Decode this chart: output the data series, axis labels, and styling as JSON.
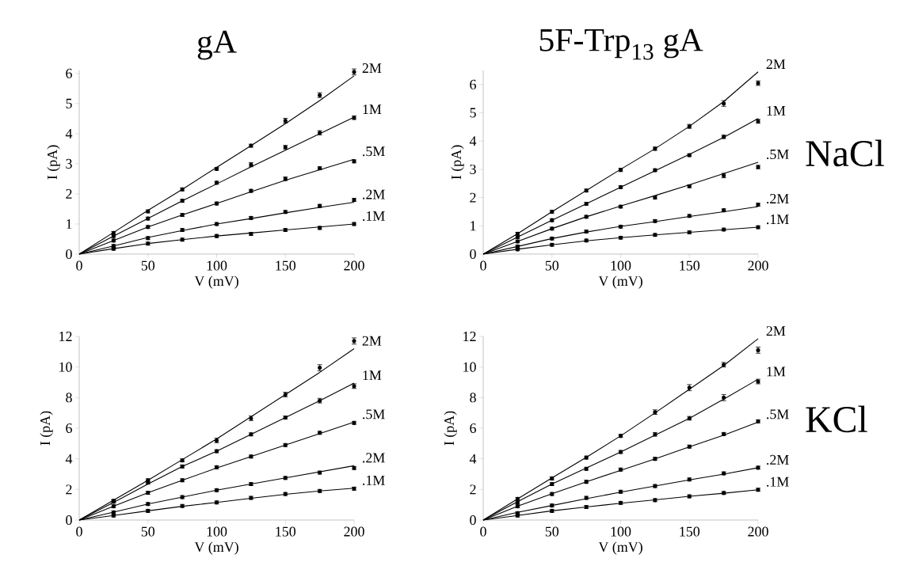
{
  "chart_data": [
    {
      "type": "line",
      "title": "gA",
      "xlabel": "V (mV)",
      "ylabel": "I (pA)",
      "marker": "none",
      "line_style": "solid",
      "x": [
        0,
        25,
        50,
        75,
        100,
        125,
        150,
        175,
        200
      ],
      "xlim": [
        0,
        200
      ],
      "xticks": [
        0,
        50,
        100,
        150,
        200
      ],
      "ylim": [
        0,
        6.1
      ],
      "yticks": [
        0,
        1,
        2,
        3,
        4,
        5,
        6
      ],
      "series": [
        {
          "name": "2M",
          "color": "#000000",
          "values": [
            0,
            0.72,
            1.45,
            2.15,
            2.88,
            3.6,
            4.33,
            5.1,
            5.92
          ]
        },
        {
          "name": "1M",
          "color": "#000000",
          "values": [
            0,
            0.6,
            1.18,
            1.77,
            2.33,
            2.9,
            3.45,
            4.0,
            4.55
          ]
        },
        {
          "name": ".5M",
          "color": "#000000",
          "values": [
            0,
            0.45,
            0.9,
            1.3,
            1.68,
            2.07,
            2.45,
            2.8,
            3.15
          ]
        },
        {
          "name": ".2M",
          "color": "#000000",
          "values": [
            0,
            0.27,
            0.55,
            0.78,
            1.0,
            1.18,
            1.37,
            1.55,
            1.72
          ]
        },
        {
          "name": ".1M",
          "color": "#000000",
          "values": [
            0,
            0.18,
            0.35,
            0.48,
            0.6,
            0.7,
            0.8,
            0.9,
            1.0
          ]
        },
        {
          "type": "scatter",
          "color": "#000000",
          "x": [
            25,
            50,
            75,
            100,
            125,
            150,
            175,
            200
          ],
          "values": [
            0.7,
            1.42,
            2.15,
            2.83,
            3.6,
            4.43,
            5.28,
            6.05
          ],
          "errors": [
            0.05,
            0.05,
            0.05,
            0.05,
            0.05,
            0.08,
            0.08,
            0.1
          ]
        },
        {
          "type": "scatter",
          "color": "#000000",
          "x": [
            25,
            50,
            75,
            100,
            125,
            150,
            175,
            200
          ],
          "values": [
            0.6,
            1.18,
            1.77,
            2.37,
            2.97,
            3.55,
            4.03,
            4.53
          ],
          "errors": [
            0.05,
            0.05,
            0.05,
            0.05,
            0.07,
            0.06,
            0.07,
            0.06
          ]
        },
        {
          "type": "scatter",
          "color": "#000000",
          "x": [
            25,
            50,
            75,
            100,
            125,
            150,
            175,
            200
          ],
          "values": [
            0.45,
            0.9,
            1.3,
            1.68,
            2.1,
            2.5,
            2.85,
            3.08
          ],
          "errors": [
            0.05,
            0.05,
            0.05,
            0.05,
            0.05,
            0.06,
            0.05,
            0.05
          ]
        },
        {
          "type": "scatter",
          "color": "#000000",
          "x": [
            25,
            50,
            75,
            100,
            125,
            150,
            175,
            200
          ],
          "values": [
            0.27,
            0.53,
            0.8,
            1.0,
            1.2,
            1.4,
            1.6,
            1.8
          ],
          "errors": [
            0.05,
            0.05,
            0.05,
            0.05,
            0.05,
            0.05,
            0.05,
            0.05
          ]
        },
        {
          "type": "scatter",
          "color": "#000000",
          "x": [
            25,
            50,
            75,
            100,
            125,
            150,
            175,
            200
          ],
          "values": [
            0.18,
            0.35,
            0.48,
            0.6,
            0.67,
            0.8,
            0.87,
            1.0
          ],
          "errors": [
            0.05,
            0.05,
            0.05,
            0.05,
            0.05,
            0.05,
            0.05,
            0.05
          ]
        }
      ]
    },
    {
      "type": "line",
      "title": "5F-Trp$_{13}$ gA",
      "xlabel": "V (mV)",
      "ylabel": "I (pA)",
      "marker": "none",
      "line_style": "solid",
      "x": [
        0,
        25,
        50,
        75,
        100,
        125,
        150,
        175,
        200
      ],
      "xlim": [
        0,
        200
      ],
      "xticks": [
        0,
        50,
        100,
        150,
        200
      ],
      "ylim": [
        0,
        6.5
      ],
      "yticks": [
        0,
        1,
        2,
        3,
        4,
        5,
        6
      ],
      "annotations": [
        "NaCl"
      ],
      "series": [
        {
          "name": "2M",
          "color": "#000000",
          "values": [
            0,
            0.72,
            1.5,
            2.25,
            3.0,
            3.73,
            4.52,
            5.4,
            6.45
          ]
        },
        {
          "name": "1M",
          "color": "#000000",
          "values": [
            0,
            0.6,
            1.2,
            1.78,
            2.37,
            2.95,
            3.53,
            4.13,
            4.8
          ]
        },
        {
          "name": ".5M",
          "color": "#000000",
          "values": [
            0,
            0.45,
            0.9,
            1.32,
            1.7,
            2.07,
            2.45,
            2.85,
            3.25
          ]
        },
        {
          "name": ".2M",
          "color": "#000000",
          "values": [
            0,
            0.27,
            0.55,
            0.78,
            0.98,
            1.15,
            1.33,
            1.5,
            1.68
          ]
        },
        {
          "name": ".1M",
          "color": "#000000",
          "values": [
            0,
            0.17,
            0.33,
            0.47,
            0.58,
            0.68,
            0.77,
            0.86,
            0.95
          ]
        },
        {
          "type": "scatter",
          "color": "#000000",
          "x": [
            25,
            50,
            75,
            100,
            125,
            150,
            175,
            200
          ],
          "values": [
            0.72,
            1.5,
            2.25,
            2.98,
            3.73,
            4.52,
            5.33,
            6.05
          ],
          "errors": [
            0.05,
            0.05,
            0.05,
            0.06,
            0.06,
            0.07,
            0.1,
            0.08
          ]
        },
        {
          "type": "scatter",
          "color": "#000000",
          "x": [
            25,
            50,
            75,
            100,
            125,
            150,
            175,
            200
          ],
          "values": [
            0.6,
            1.2,
            1.78,
            2.37,
            2.97,
            3.5,
            4.15,
            4.7
          ],
          "errors": [
            0.05,
            0.05,
            0.05,
            0.05,
            0.05,
            0.05,
            0.06,
            0.07
          ]
        },
        {
          "type": "scatter",
          "color": "#000000",
          "x": [
            25,
            50,
            75,
            100,
            125,
            150,
            175,
            200
          ],
          "values": [
            0.45,
            0.9,
            1.32,
            1.68,
            2.0,
            2.4,
            2.78,
            3.08
          ],
          "errors": [
            0.05,
            0.05,
            0.05,
            0.05,
            0.05,
            0.05,
            0.08,
            0.06
          ]
        },
        {
          "type": "scatter",
          "color": "#000000",
          "x": [
            25,
            50,
            75,
            100,
            125,
            150,
            175,
            200
          ],
          "values": [
            0.27,
            0.55,
            0.8,
            0.97,
            1.17,
            1.35,
            1.55,
            1.75
          ],
          "errors": [
            0.05,
            0.05,
            0.05,
            0.05,
            0.05,
            0.05,
            0.05,
            0.05
          ]
        },
        {
          "type": "scatter",
          "color": "#000000",
          "x": [
            25,
            50,
            75,
            100,
            125,
            150,
            175,
            200
          ],
          "values": [
            0.17,
            0.33,
            0.48,
            0.58,
            0.68,
            0.77,
            0.87,
            0.95
          ],
          "errors": [
            0.05,
            0.05,
            0.05,
            0.05,
            0.05,
            0.05,
            0.05,
            0.05
          ]
        }
      ]
    },
    {
      "type": "line",
      "xlabel": "V (mV)",
      "ylabel": "I (pA)",
      "marker": "none",
      "line_style": "solid",
      "x": [
        0,
        25,
        50,
        75,
        100,
        125,
        150,
        175,
        200
      ],
      "xlim": [
        0,
        200
      ],
      "xticks": [
        0,
        50,
        100,
        150,
        200
      ],
      "ylim": [
        0,
        12
      ],
      "yticks": [
        0,
        2,
        4,
        6,
        8,
        10,
        12
      ],
      "series": [
        {
          "name": "2M",
          "color": "#000000",
          "values": [
            0,
            1.3,
            2.6,
            3.95,
            5.3,
            6.75,
            8.2,
            9.65,
            11.2
          ]
        },
        {
          "name": "1M",
          "color": "#000000",
          "values": [
            0,
            1.15,
            2.35,
            3.5,
            4.5,
            5.6,
            6.7,
            7.8,
            8.95
          ]
        },
        {
          "name": ".5M",
          "color": "#000000",
          "values": [
            0,
            0.9,
            1.78,
            2.6,
            3.4,
            4.15,
            4.9,
            5.65,
            6.4
          ]
        },
        {
          "name": ".2M",
          "color": "#000000",
          "values": [
            0,
            0.52,
            1.05,
            1.5,
            1.95,
            2.35,
            2.75,
            3.15,
            3.55
          ]
        },
        {
          "name": ".1M",
          "color": "#000000",
          "values": [
            0,
            0.3,
            0.6,
            0.9,
            1.15,
            1.42,
            1.68,
            1.9,
            2.08
          ]
        },
        {
          "type": "scatter",
          "color": "#000000",
          "x": [
            25,
            50,
            75,
            100,
            125,
            150,
            175,
            200
          ],
          "values": [
            1.25,
            2.6,
            3.9,
            5.2,
            6.65,
            8.2,
            9.95,
            11.7
          ],
          "errors": [
            0.1,
            0.1,
            0.1,
            0.15,
            0.15,
            0.15,
            0.2,
            0.2
          ]
        },
        {
          "type": "scatter",
          "color": "#000000",
          "x": [
            25,
            50,
            75,
            100,
            125,
            150,
            175,
            200
          ],
          "values": [
            1.2,
            2.45,
            3.5,
            4.5,
            5.6,
            6.7,
            7.8,
            8.75
          ],
          "errors": [
            0.1,
            0.1,
            0.1,
            0.1,
            0.1,
            0.1,
            0.15,
            0.15
          ]
        },
        {
          "type": "scatter",
          "color": "#000000",
          "x": [
            25,
            50,
            75,
            100,
            125,
            150,
            175,
            200
          ],
          "values": [
            0.9,
            1.78,
            2.6,
            3.45,
            4.15,
            4.9,
            5.7,
            6.35
          ],
          "errors": [
            0.1,
            0.1,
            0.1,
            0.1,
            0.1,
            0.1,
            0.1,
            0.1
          ]
        },
        {
          "type": "scatter",
          "color": "#000000",
          "x": [
            25,
            50,
            75,
            100,
            125,
            150,
            175,
            200
          ],
          "values": [
            0.5,
            1.05,
            1.5,
            1.95,
            2.35,
            2.75,
            3.1,
            3.4
          ],
          "errors": [
            0.1,
            0.1,
            0.1,
            0.1,
            0.1,
            0.1,
            0.1,
            0.1
          ]
        },
        {
          "type": "scatter",
          "color": "#000000",
          "x": [
            25,
            50,
            75,
            100,
            125,
            150,
            175,
            200
          ],
          "values": [
            0.3,
            0.6,
            0.92,
            1.15,
            1.45,
            1.7,
            1.9,
            2.05
          ],
          "errors": [
            0.1,
            0.1,
            0.1,
            0.1,
            0.1,
            0.1,
            0.1,
            0.1
          ]
        }
      ]
    },
    {
      "type": "line",
      "xlabel": "V (mV)",
      "ylabel": "I (pA)",
      "marker": "none",
      "line_style": "solid",
      "x": [
        0,
        25,
        50,
        75,
        100,
        125,
        150,
        175,
        200
      ],
      "xlim": [
        0,
        200
      ],
      "xticks": [
        0,
        50,
        100,
        150,
        200
      ],
      "ylim": [
        0,
        12
      ],
      "yticks": [
        0,
        2,
        4,
        6,
        8,
        10,
        12
      ],
      "annotations": [
        "KCl"
      ],
      "series": [
        {
          "name": "2M",
          "color": "#000000",
          "values": [
            0,
            1.38,
            2.75,
            4.1,
            5.5,
            7.0,
            8.55,
            10.1,
            11.85
          ]
        },
        {
          "name": "1M",
          "color": "#000000",
          "values": [
            0,
            1.2,
            2.35,
            3.4,
            4.45,
            5.55,
            6.65,
            7.9,
            9.2
          ]
        },
        {
          "name": ".5M",
          "color": "#000000",
          "values": [
            0,
            0.9,
            1.72,
            2.5,
            3.25,
            4.0,
            4.78,
            5.55,
            6.4
          ]
        },
        {
          "name": ".2M",
          "color": "#000000",
          "values": [
            0,
            0.5,
            0.95,
            1.4,
            1.82,
            2.22,
            2.62,
            3.0,
            3.42
          ]
        },
        {
          "name": ".1M",
          "color": "#000000",
          "values": [
            0,
            0.3,
            0.6,
            0.85,
            1.1,
            1.32,
            1.55,
            1.75,
            1.98
          ]
        },
        {
          "type": "scatter",
          "color": "#000000",
          "x": [
            25,
            50,
            75,
            100,
            125,
            150,
            175,
            200
          ],
          "values": [
            1.38,
            2.72,
            4.08,
            5.5,
            7.05,
            8.65,
            10.15,
            11.1
          ],
          "errors": [
            0.1,
            0.1,
            0.1,
            0.1,
            0.15,
            0.2,
            0.15,
            0.2
          ]
        },
        {
          "type": "scatter",
          "color": "#000000",
          "x": [
            25,
            50,
            75,
            100,
            125,
            150,
            175,
            200
          ],
          "values": [
            1.15,
            2.35,
            3.35,
            4.45,
            5.6,
            6.65,
            8.0,
            9.05
          ],
          "errors": [
            0.1,
            0.1,
            0.1,
            0.1,
            0.12,
            0.12,
            0.2,
            0.15
          ]
        },
        {
          "type": "scatter",
          "color": "#000000",
          "x": [
            25,
            50,
            75,
            100,
            125,
            150,
            175,
            200
          ],
          "values": [
            0.9,
            1.7,
            2.5,
            3.3,
            4.0,
            4.8,
            5.62,
            6.45
          ],
          "errors": [
            0.1,
            0.1,
            0.1,
            0.1,
            0.1,
            0.1,
            0.1,
            0.1
          ]
        },
        {
          "type": "scatter",
          "color": "#000000",
          "x": [
            25,
            50,
            75,
            100,
            125,
            150,
            175,
            200
          ],
          "values": [
            0.45,
            0.95,
            1.45,
            1.85,
            2.22,
            2.65,
            3.05,
            3.42
          ],
          "errors": [
            0.1,
            0.1,
            0.1,
            0.1,
            0.1,
            0.1,
            0.1,
            0.1
          ]
        },
        {
          "type": "scatter",
          "color": "#000000",
          "x": [
            25,
            50,
            75,
            100,
            125,
            150,
            175,
            200
          ],
          "values": [
            0.3,
            0.6,
            0.85,
            1.12,
            1.3,
            1.55,
            1.77,
            1.98
          ],
          "errors": [
            0.1,
            0.1,
            0.1,
            0.1,
            0.1,
            0.1,
            0.1,
            0.1
          ]
        }
      ]
    }
  ]
}
